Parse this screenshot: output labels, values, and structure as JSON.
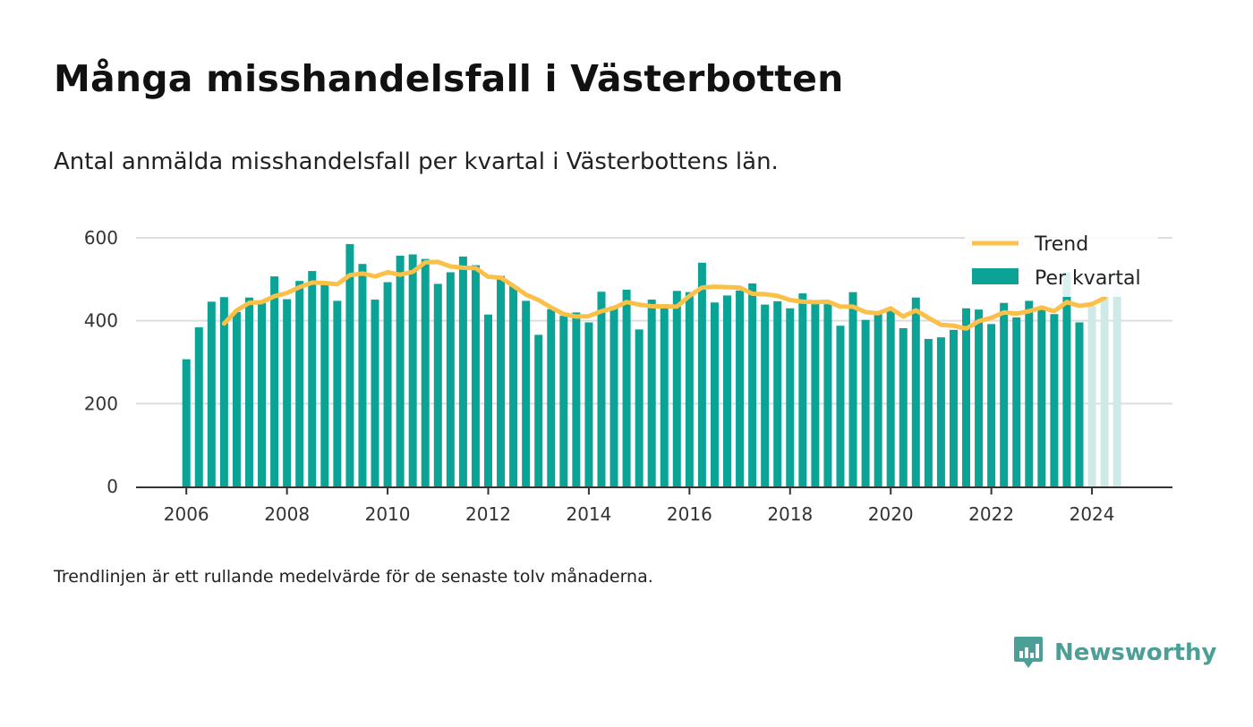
{
  "title": "Många misshandelsfall i Västerbotten",
  "subtitle": "Antal anmälda misshandelsfall per kvartal i Västerbottens län.",
  "footnote": "Trendlinjen är ett rullande medelvärde för de senaste tolv månaderna.",
  "brand": {
    "name": "Newsworthy",
    "icon": "newsworthy-logo-icon"
  },
  "colors": {
    "bar": "#0aa396",
    "bar_highlight": "#cfe9e7",
    "trend": "#fbc047",
    "grid": "#dddddd",
    "axis": "#333333",
    "brand": "#4b9f97"
  },
  "chart_data": {
    "type": "bar",
    "x_start": "2006",
    "quarters_per_year": 4,
    "x_ticks": [
      "2006",
      "2008",
      "2010",
      "2012",
      "2014",
      "2016",
      "2018",
      "2020",
      "2022",
      "2024"
    ],
    "x_range": [
      2005,
      2025.6
    ],
    "ylim": [
      0,
      600
    ],
    "y_ticks": [
      "0",
      "200",
      "400",
      "600"
    ],
    "grid": true,
    "legend_position": "top-right",
    "series": [
      {
        "name": "Per kvartal",
        "kind": "bar",
        "values": [
          307,
          384,
          446,
          457,
          421,
          456,
          445,
          507,
          452,
          496,
          520,
          487,
          448,
          585,
          537,
          451,
          493,
          557,
          560,
          549,
          489,
          517,
          555,
          534,
          415,
          508,
          484,
          448,
          366,
          428,
          412,
          420,
          396,
          470,
          435,
          475,
          379,
          451,
          440,
          472,
          469,
          540,
          444,
          461,
          473,
          490,
          439,
          447,
          430,
          466,
          445,
          440,
          388,
          469,
          402,
          421,
          424,
          382,
          456,
          356,
          360,
          378,
          430,
          427,
          392,
          443,
          408,
          448,
          429,
          416,
          517,
          396,
          435,
          504,
          513
        ],
        "highlighted_last": 3
      },
      {
        "name": "Trend",
        "kind": "line",
        "start_index": 3,
        "values": [
          393,
          425,
          443,
          445,
          459,
          467,
          481,
          492,
          491,
          488,
          510,
          514,
          507,
          517,
          511,
          518,
          541,
          542,
          531,
          528,
          527,
          506,
          504,
          484,
          463,
          450,
          432,
          416,
          410,
          411,
          423,
          431,
          445,
          439,
          435,
          435,
          434,
          460,
          480,
          482,
          481,
          480,
          465,
          464,
          460,
          450,
          446,
          445,
          446,
          434,
          434,
          421,
          418,
          430,
          410,
          425,
          407,
          390,
          388,
          381,
          399,
          407,
          420,
          417,
          423,
          432,
          423,
          445,
          436,
          440,
          455
        ]
      }
    ]
  }
}
